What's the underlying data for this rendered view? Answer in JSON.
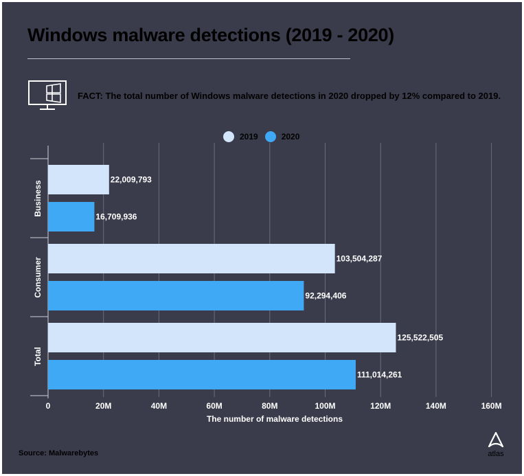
{
  "title": "Windows malware detections (2019 - 2020)",
  "fact": "FACT: The total number of Windows malware detections in 2020 dropped by 12% compared to 2019.",
  "source": "Source: Malwarebytes",
  "brand": "atlas",
  "icons": {
    "fact": "windows-monitor-icon",
    "brand": "atlas-logo-icon"
  },
  "colors": {
    "background": "#3a3b4b",
    "series_2019": "#d3e5fb",
    "series_2020": "#3fa9f5",
    "grid": "#6b6c7c"
  },
  "chart_data": {
    "type": "bar",
    "orientation": "horizontal",
    "categories": [
      "Business",
      "Consumer",
      "Total"
    ],
    "series": [
      {
        "name": "2019",
        "values": [
          22009793,
          103504287,
          125522505
        ],
        "labels": [
          "22,009,793",
          "103,504,287",
          "125,522,505"
        ]
      },
      {
        "name": "2020",
        "values": [
          16709936,
          92294406,
          111014261
        ],
        "labels": [
          "16,709,936",
          "92,294,406",
          "111,014,261"
        ]
      }
    ],
    "xlabel": "The number of malware detections",
    "ylabel": "",
    "xlim": [
      0,
      160000000
    ],
    "xticks": [
      0,
      20000000,
      40000000,
      60000000,
      80000000,
      100000000,
      120000000,
      140000000,
      160000000
    ],
    "xtick_labels": [
      "0",
      "20M",
      "40M",
      "60M",
      "80M",
      "100M",
      "120M",
      "140M",
      "160M"
    ],
    "grid": true,
    "legend_position": "top-center"
  }
}
